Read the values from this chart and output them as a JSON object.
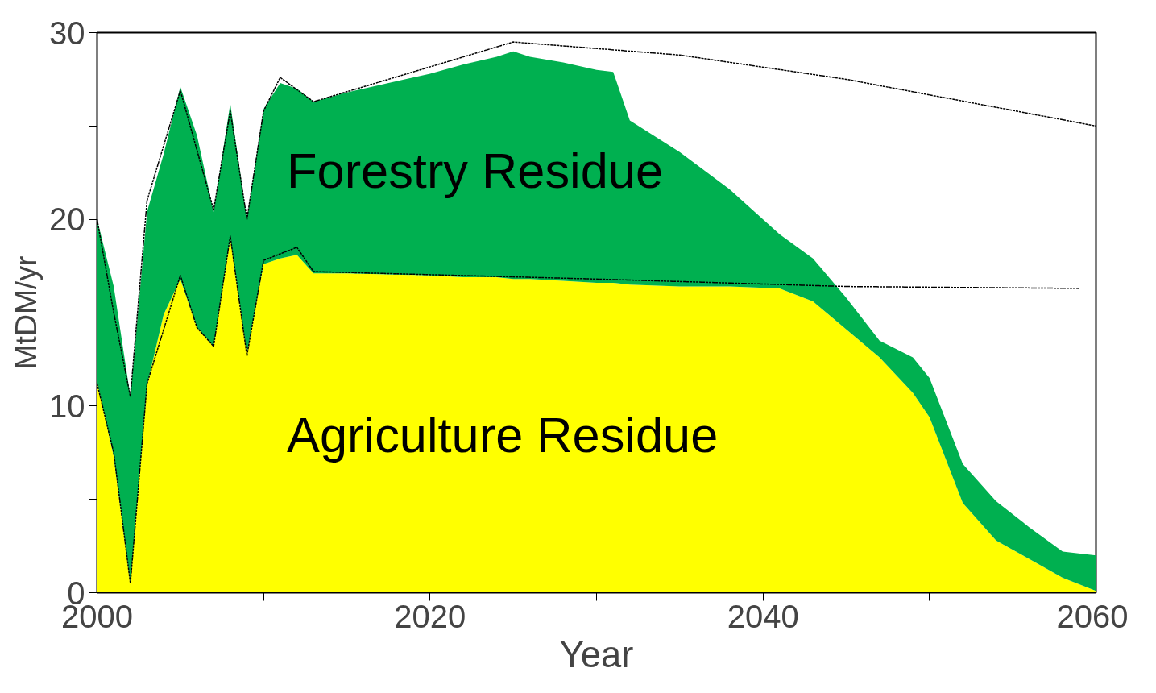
{
  "chart_data": {
    "type": "area",
    "stacked": true,
    "xlabel": "Year",
    "ylabel": "MtDM/yr",
    "x": [
      2000,
      2001,
      2002,
      2003,
      2004,
      2005,
      2006,
      2007,
      2008,
      2009,
      2010,
      2011,
      2012,
      2013,
      2015,
      2020,
      2022,
      2024,
      2025,
      2026,
      2028,
      2030,
      2031,
      2032,
      2035,
      2038,
      2041,
      2043,
      2045,
      2047,
      2049,
      2050,
      2052,
      2054,
      2056,
      2058,
      2060
    ],
    "series": [
      {
        "name": "Agriculture Residue",
        "color": "#ffff00",
        "values": [
          11.3,
          7.3,
          0.5,
          11.1,
          14.9,
          16.8,
          14.2,
          13.2,
          19.0,
          12.8,
          17.6,
          17.9,
          18.1,
          17.1,
          17.1,
          17.0,
          16.9,
          16.9,
          16.8,
          16.8,
          16.7,
          16.6,
          16.6,
          16.5,
          16.4,
          16.4,
          16.3,
          15.6,
          14.1,
          12.6,
          10.7,
          9.4,
          4.8,
          2.8,
          1.8,
          0.8,
          0.1
        ]
      },
      {
        "name": "Forestry Residue",
        "color": "#00b050",
        "values": [
          8.7,
          9.1,
          10.0,
          9.3,
          8.6,
          10.3,
          10.3,
          7.2,
          7.2,
          7.2,
          8.3,
          9.4,
          8.9,
          9.2,
          9.7,
          10.8,
          11.4,
          11.8,
          12.2,
          11.9,
          11.7,
          11.4,
          11.3,
          8.8,
          7.2,
          5.2,
          2.9,
          2.3,
          1.7,
          0.9,
          1.9,
          2.1,
          2.1,
          2.1,
          1.7,
          1.4,
          1.9
        ]
      },
      {
        "type": "line",
        "color": "#000000",
        "line_style": "dashed",
        "x": [
          2000,
          2001,
          2002,
          2003,
          2005,
          2007,
          2008,
          2009,
          2010,
          2011,
          2013,
          2025,
          2035,
          2045,
          2060
        ],
        "values": [
          20.0,
          15.0,
          10.5,
          21.0,
          26.9,
          20.5,
          25.8,
          20.0,
          25.8,
          27.6,
          26.3,
          29.5,
          28.8,
          27.5,
          25.0
        ]
      },
      {
        "type": "line",
        "color": "#000000",
        "line_style": "dashed",
        "x": [
          2000,
          2001,
          2002,
          2003,
          2005,
          2006,
          2007,
          2008,
          2009,
          2010,
          2012,
          2013,
          2030,
          2045,
          2059
        ],
        "values": [
          11.2,
          7.5,
          0.5,
          11.2,
          17.0,
          14.2,
          13.2,
          19.1,
          12.7,
          17.8,
          18.5,
          17.2,
          16.8,
          16.4,
          16.3
        ]
      }
    ],
    "xlim": [
      2000,
      2060
    ],
    "xticks": [
      2000,
      {
        "value": 2010,
        "label": null
      },
      2020,
      {
        "value": 2030,
        "label": null
      },
      2040,
      {
        "value": 2050,
        "label": null
      },
      2060
    ],
    "ylim": [
      0,
      30
    ],
    "yticks": [
      0,
      {
        "value": 5,
        "label": null
      },
      10,
      {
        "value": 15,
        "label": null
      },
      20,
      {
        "value": 25,
        "label": null
      },
      30
    ],
    "grid": false,
    "marker": "none"
  }
}
